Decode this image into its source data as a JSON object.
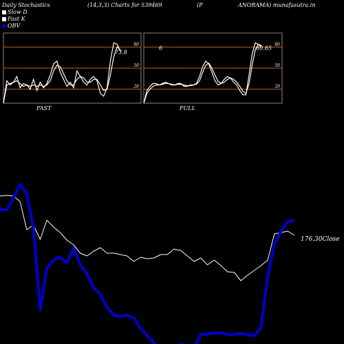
{
  "header": {
    "title": "Daily Stochastics",
    "params": "(14,3,3) Charts for 539469",
    "name_left": "(P",
    "name_right": "ANORAMA) munafasutra.in"
  },
  "legend": [
    {
      "label": "Slow  D",
      "color": "#ffffff"
    },
    {
      "label": "Fast K",
      "color": "#ffffff"
    },
    {
      "label": "OBV",
      "color": "#0000cc"
    }
  ],
  "colors": {
    "background": "#000000",
    "grid": "#b5651d",
    "panel_border": "#888888",
    "price": "#ffffff",
    "obv": "#0000cc"
  },
  "chart_data": [
    {
      "type": "line",
      "title": "FAST",
      "panel": "fast",
      "ylim": [
        0,
        100
      ],
      "yticks": [
        20,
        50,
        80
      ],
      "last_label": "73.8",
      "series": [
        {
          "name": "Fast K",
          "values": [
            0,
            32,
            26,
            30,
            38,
            22,
            28,
            26,
            20,
            34,
            18,
            30,
            22,
            28,
            40,
            56,
            60,
            44,
            34,
            24,
            30,
            22,
            46,
            38,
            30,
            26,
            34,
            38,
            32,
            14,
            10,
            22,
            60,
            86,
            84,
            74
          ]
        },
        {
          "name": "Slow  D",
          "values": [
            0,
            26,
            28,
            30,
            32,
            28,
            24,
            26,
            24,
            26,
            24,
            26,
            24,
            26,
            32,
            46,
            54,
            52,
            42,
            32,
            26,
            26,
            34,
            38,
            36,
            30,
            30,
            34,
            34,
            26,
            18,
            20,
            40,
            66,
            80,
            76
          ]
        }
      ]
    },
    {
      "type": "line",
      "title": "FULL",
      "panel": "full",
      "ylim": [
        0,
        100
      ],
      "yticks": [
        20,
        50,
        80
      ],
      "last_label": "80.85",
      "top_left_label": "6",
      "series": [
        {
          "name": "Fast K",
          "values": [
            0,
            18,
            24,
            28,
            28,
            26,
            28,
            30,
            28,
            26,
            26,
            28,
            28,
            24,
            24,
            26,
            26,
            28,
            38,
            52,
            60,
            56,
            44,
            32,
            26,
            28,
            34,
            38,
            36,
            30,
            26,
            18,
            12,
            12,
            40,
            70,
            86,
            84,
            80
          ]
        },
        {
          "name": "Slow  D",
          "values": [
            0,
            14,
            20,
            24,
            26,
            26,
            27,
            28,
            28,
            27,
            26,
            27,
            27,
            26,
            25,
            25,
            26,
            27,
            32,
            44,
            54,
            57,
            50,
            40,
            31,
            28,
            30,
            34,
            36,
            34,
            30,
            24,
            17,
            14,
            28,
            54,
            76,
            84,
            82
          ]
        }
      ]
    },
    {
      "type": "line",
      "title": "",
      "panel": "price_obv",
      "close_label": "176.30Close",
      "series": [
        {
          "name": "Price",
          "values": [
            285,
            284,
            285,
            293,
            334,
            327,
            348,
            320,
            330,
            338,
            349,
            356,
            368,
            372,
            365,
            360,
            368,
            368,
            370,
            372,
            380,
            374,
            376,
            375,
            370,
            370,
            362,
            364,
            372,
            380,
            375,
            385,
            378,
            386,
            395,
            396,
            408,
            400,
            393,
            386,
            378,
            340,
            338,
            336,
            342
          ]
        },
        {
          "name": "OBV",
          "values": [
            305,
            305,
            288,
            268,
            282,
            330,
            450,
            390,
            378,
            374,
            382,
            360,
            385,
            398,
            418,
            428,
            447,
            458,
            460,
            458,
            462,
            478,
            488,
            498,
            510,
            512,
            510,
            500,
            504,
            505,
            486,
            486,
            484,
            484,
            486,
            486,
            485,
            486,
            488,
            476,
            402,
            355,
            336,
            322,
            320
          ]
        }
      ]
    }
  ]
}
